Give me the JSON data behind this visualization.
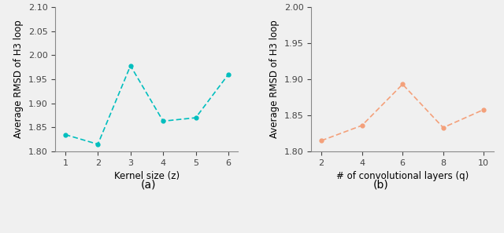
{
  "plot_a": {
    "x": [
      1,
      2,
      3,
      4,
      5,
      6
    ],
    "y": [
      1.835,
      1.815,
      1.978,
      1.863,
      1.87,
      1.96
    ],
    "color": "#00BEBE",
    "xlabel": "Kernel size (z)",
    "ylabel": "Average RMSD of H3 loop",
    "xlim": [
      0.7,
      6.3
    ],
    "ylim": [
      1.8,
      2.1
    ],
    "yticks": [
      1.8,
      1.85,
      1.9,
      1.95,
      2.0,
      2.05,
      2.1
    ],
    "xticks": [
      1,
      2,
      3,
      4,
      5,
      6
    ],
    "label": "(a)"
  },
  "plot_b": {
    "x": [
      2,
      4,
      6,
      8,
      10
    ],
    "y": [
      1.815,
      1.836,
      1.893,
      1.833,
      1.858
    ],
    "color": "#F4A07A",
    "xlabel": "# of convolutional layers (q)",
    "ylabel": "Average RMSD of H3 loop",
    "xlim": [
      1.5,
      10.5
    ],
    "ylim": [
      1.8,
      2.0
    ],
    "yticks": [
      1.8,
      1.85,
      1.9,
      1.95,
      2.0
    ],
    "xticks": [
      2,
      4,
      6,
      8,
      10
    ],
    "label": "(b)"
  },
  "label_fontsize": 8.5,
  "tick_fontsize": 8,
  "subplot_label_fontsize": 10,
  "bg_color": "#f0f0f0"
}
